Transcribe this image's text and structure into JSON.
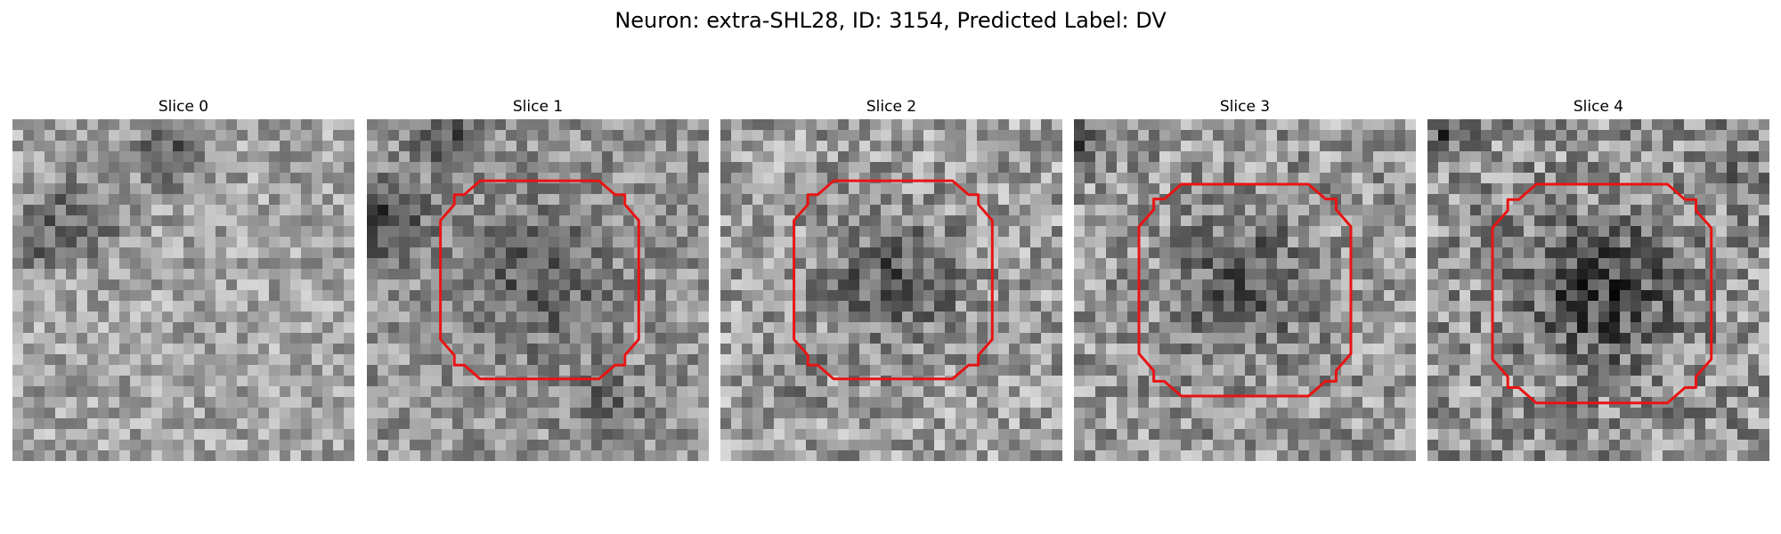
{
  "figure": {
    "title": "Neuron: extra-SHL28, ID: 3154, Predicted Label: DV"
  },
  "slices": [
    {
      "label": "Slice 0",
      "has_contour": false
    },
    {
      "label": "Slice 1",
      "has_contour": true
    },
    {
      "label": "Slice 2",
      "has_contour": true
    },
    {
      "label": "Slice 3",
      "has_contour": true
    },
    {
      "label": "Slice 4",
      "has_contour": true
    }
  ],
  "colors": {
    "contour": "#e81414",
    "background": "#ffffff"
  }
}
